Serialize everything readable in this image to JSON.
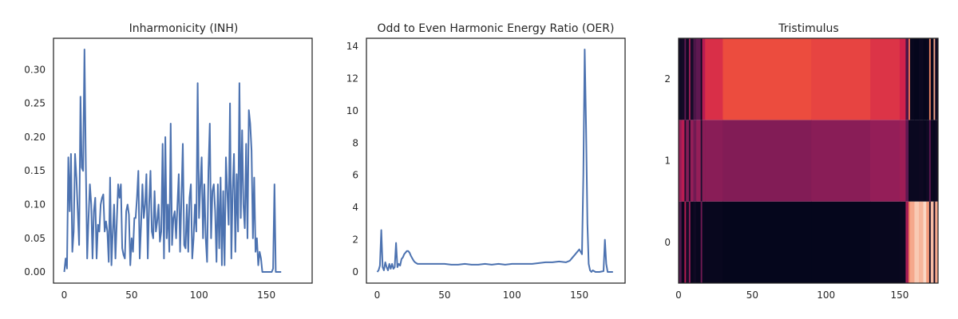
{
  "chart_data": [
    {
      "type": "line",
      "title": "Inharmonicity (INH)",
      "xlabel": "",
      "ylabel": "",
      "xlim": [
        -8,
        184
      ],
      "ylim": [
        -0.0165,
        0.3465
      ],
      "xticks": [
        0,
        50,
        100,
        150
      ],
      "yticks": [
        0.0,
        0.05,
        0.1,
        0.15,
        0.2,
        0.25,
        0.3
      ],
      "ytick_labels": [
        "0.00",
        "0.05",
        "0.10",
        "0.15",
        "0.20",
        "0.25",
        "0.30"
      ],
      "grid": false,
      "color": "#4c72b0",
      "points": [
        [
          0,
          0.0
        ],
        [
          1,
          0.02
        ],
        [
          2,
          0.005
        ],
        [
          3,
          0.17
        ],
        [
          4,
          0.09
        ],
        [
          5,
          0.175
        ],
        [
          6,
          0.03
        ],
        [
          7,
          0.06
        ],
        [
          8,
          0.175
        ],
        [
          9,
          0.14
        ],
        [
          10,
          0.09
        ],
        [
          11,
          0.04
        ],
        [
          12,
          0.26
        ],
        [
          13,
          0.155
        ],
        [
          14,
          0.15
        ],
        [
          15,
          0.33
        ],
        [
          16,
          0.16
        ],
        [
          17,
          0.02
        ],
        [
          18,
          0.08
        ],
        [
          19,
          0.13
        ],
        [
          20,
          0.1
        ],
        [
          21,
          0.02
        ],
        [
          22,
          0.09
        ],
        [
          23,
          0.11
        ],
        [
          24,
          0.02
        ],
        [
          25,
          0.07
        ],
        [
          26,
          0.06
        ],
        [
          27,
          0.1
        ],
        [
          28,
          0.11
        ],
        [
          29,
          0.115
        ],
        [
          30,
          0.06
        ],
        [
          31,
          0.075
        ],
        [
          32,
          0.06
        ],
        [
          33,
          0.015
        ],
        [
          34,
          0.14
        ],
        [
          35,
          0.01
        ],
        [
          36,
          0.06
        ],
        [
          37,
          0.1
        ],
        [
          38,
          0.02
        ],
        [
          39,
          0.075
        ],
        [
          40,
          0.13
        ],
        [
          41,
          0.11
        ],
        [
          42,
          0.13
        ],
        [
          43,
          0.035
        ],
        [
          44,
          0.025
        ],
        [
          45,
          0.02
        ],
        [
          46,
          0.09
        ],
        [
          47,
          0.1
        ],
        [
          48,
          0.085
        ],
        [
          49,
          0.01
        ],
        [
          50,
          0.05
        ],
        [
          51,
          0.03
        ],
        [
          52,
          0.08
        ],
        [
          53,
          0.08
        ],
        [
          54,
          0.11
        ],
        [
          55,
          0.15
        ],
        [
          56,
          0.02
        ],
        [
          57,
          0.07
        ],
        [
          58,
          0.13
        ],
        [
          59,
          0.08
        ],
        [
          60,
          0.1
        ],
        [
          61,
          0.145
        ],
        [
          62,
          0.02
        ],
        [
          63,
          0.1
        ],
        [
          64,
          0.15
        ],
        [
          65,
          0.06
        ],
        [
          66,
          0.05
        ],
        [
          67,
          0.12
        ],
        [
          68,
          0.06
        ],
        [
          69,
          0.075
        ],
        [
          70,
          0.1
        ],
        [
          71,
          0.045
        ],
        [
          72,
          0.06
        ],
        [
          73,
          0.19
        ],
        [
          74,
          0.02
        ],
        [
          75,
          0.2
        ],
        [
          76,
          0.05
        ],
        [
          77,
          0.1
        ],
        [
          78,
          0.03
        ],
        [
          79,
          0.22
        ],
        [
          80,
          0.04
        ],
        [
          81,
          0.08
        ],
        [
          82,
          0.09
        ],
        [
          83,
          0.05
        ],
        [
          84,
          0.1
        ],
        [
          85,
          0.145
        ],
        [
          86,
          0.03
        ],
        [
          87,
          0.11
        ],
        [
          88,
          0.19
        ],
        [
          89,
          0.04
        ],
        [
          90,
          0.035
        ],
        [
          91,
          0.1
        ],
        [
          92,
          0.03
        ],
        [
          93,
          0.11
        ],
        [
          94,
          0.13
        ],
        [
          95,
          0.02
        ],
        [
          96,
          0.05
        ],
        [
          97,
          0.1
        ],
        [
          98,
          0.06
        ],
        [
          99,
          0.28
        ],
        [
          100,
          0.08
        ],
        [
          101,
          0.125
        ],
        [
          102,
          0.17
        ],
        [
          103,
          0.05
        ],
        [
          104,
          0.13
        ],
        [
          105,
          0.05
        ],
        [
          106,
          0.015
        ],
        [
          107,
          0.15
        ],
        [
          108,
          0.22
        ],
        [
          109,
          0.05
        ],
        [
          110,
          0.12
        ],
        [
          111,
          0.13
        ],
        [
          112,
          0.09
        ],
        [
          113,
          0.015
        ],
        [
          114,
          0.13
        ],
        [
          115,
          0.035
        ],
        [
          116,
          0.14
        ],
        [
          117,
          0.01
        ],
        [
          118,
          0.12
        ],
        [
          119,
          0.01
        ],
        [
          120,
          0.17
        ],
        [
          121,
          0.12
        ],
        [
          122,
          0.07
        ],
        [
          123,
          0.25
        ],
        [
          124,
          0.02
        ],
        [
          125,
          0.12
        ],
        [
          126,
          0.175
        ],
        [
          127,
          0.03
        ],
        [
          128,
          0.145
        ],
        [
          129,
          0.06
        ],
        [
          130,
          0.28
        ],
        [
          131,
          0.08
        ],
        [
          132,
          0.21
        ],
        [
          133,
          0.1
        ],
        [
          134,
          0.065
        ],
        [
          135,
          0.19
        ],
        [
          136,
          0.05
        ],
        [
          137,
          0.24
        ],
        [
          138,
          0.22
        ],
        [
          139,
          0.18
        ],
        [
          140,
          0.05
        ],
        [
          141,
          0.14
        ],
        [
          142,
          0.03
        ],
        [
          143,
          0.05
        ],
        [
          144,
          0.01
        ],
        [
          145,
          0.03
        ],
        [
          146,
          0.02
        ],
        [
          147,
          0.0
        ],
        [
          148,
          0.0
        ],
        [
          149,
          0.0
        ],
        [
          150,
          0.0
        ],
        [
          151,
          0.0
        ],
        [
          152,
          0.0
        ],
        [
          153,
          0.0
        ],
        [
          154,
          0.0
        ],
        [
          155,
          0.005
        ],
        [
          156,
          0.13
        ],
        [
          157,
          0.0
        ],
        [
          158,
          0.0
        ],
        [
          159,
          0.0
        ],
        [
          160,
          0.0
        ],
        [
          161,
          0.0
        ]
      ]
    },
    {
      "type": "line",
      "title": "Odd to Even Harmonic Energy Ratio (OER)",
      "xlabel": "",
      "ylabel": "",
      "xlim": [
        -8,
        184
      ],
      "ylim": [
        -0.69,
        14.49
      ],
      "xticks": [
        0,
        50,
        100,
        150
      ],
      "yticks": [
        0,
        2,
        4,
        6,
        8,
        10,
        12,
        14
      ],
      "ytick_labels": [
        "0",
        "2",
        "4",
        "6",
        "8",
        "10",
        "12",
        "14"
      ],
      "grid": false,
      "color": "#4c72b0",
      "points": [
        [
          0,
          0.0
        ],
        [
          1,
          0.1
        ],
        [
          2,
          0.4
        ],
        [
          3,
          2.6
        ],
        [
          4,
          0.3
        ],
        [
          5,
          0.1
        ],
        [
          6,
          0.6
        ],
        [
          7,
          0.3
        ],
        [
          8,
          0.1
        ],
        [
          9,
          0.5
        ],
        [
          10,
          0.2
        ],
        [
          11,
          0.5
        ],
        [
          12,
          0.2
        ],
        [
          13,
          0.3
        ],
        [
          14,
          1.8
        ],
        [
          15,
          0.3
        ],
        [
          16,
          0.5
        ],
        [
          17,
          0.4
        ],
        [
          18,
          0.8
        ],
        [
          19,
          0.9
        ],
        [
          20,
          1.1
        ],
        [
          21,
          1.2
        ],
        [
          22,
          1.3
        ],
        [
          23,
          1.3
        ],
        [
          24,
          1.2
        ],
        [
          25,
          1.0
        ],
        [
          26,
          0.85
        ],
        [
          27,
          0.7
        ],
        [
          28,
          0.6
        ],
        [
          29,
          0.55
        ],
        [
          30,
          0.5
        ],
        [
          35,
          0.5
        ],
        [
          40,
          0.5
        ],
        [
          45,
          0.5
        ],
        [
          50,
          0.5
        ],
        [
          55,
          0.45
        ],
        [
          60,
          0.45
        ],
        [
          65,
          0.5
        ],
        [
          70,
          0.45
        ],
        [
          75,
          0.45
        ],
        [
          80,
          0.5
        ],
        [
          85,
          0.45
        ],
        [
          90,
          0.5
        ],
        [
          95,
          0.45
        ],
        [
          100,
          0.5
        ],
        [
          105,
          0.5
        ],
        [
          110,
          0.5
        ],
        [
          115,
          0.5
        ],
        [
          120,
          0.55
        ],
        [
          125,
          0.6
        ],
        [
          130,
          0.6
        ],
        [
          135,
          0.65
        ],
        [
          140,
          0.6
        ],
        [
          143,
          0.7
        ],
        [
          145,
          0.9
        ],
        [
          147,
          1.1
        ],
        [
          150,
          1.4
        ],
        [
          152,
          1.1
        ],
        [
          153,
          6.0
        ],
        [
          154,
          13.8
        ],
        [
          155,
          9.0
        ],
        [
          156,
          3.0
        ],
        [
          157,
          0.5
        ],
        [
          158,
          0.1
        ],
        [
          159,
          0.0
        ],
        [
          160,
          0.1
        ],
        [
          161,
          0.05
        ],
        [
          162,
          0.0
        ],
        [
          165,
          0.0
        ],
        [
          168,
          0.05
        ],
        [
          169,
          2.0
        ],
        [
          170,
          0.5
        ],
        [
          171,
          0.0
        ],
        [
          175,
          0.0
        ]
      ]
    },
    {
      "type": "heatmap",
      "title": "Tristimulus",
      "xlabel": "",
      "ylabel": "",
      "xlim": [
        0,
        176
      ],
      "ylim": [
        -0.5,
        2.5
      ],
      "xticks": [
        0,
        50,
        100,
        150
      ],
      "yticks": [
        0,
        1,
        2
      ],
      "ytick_labels": [
        "0",
        "1",
        "2"
      ],
      "colormap": "rocket",
      "rows": [
        "0",
        "1",
        "2"
      ],
      "value_scale": [
        0,
        1
      ],
      "segments": [
        {
          "x0": 0,
          "x1": 2,
          "values": [
            0.25,
            0.45,
            0.05
          ]
        },
        {
          "x0": 2,
          "x1": 4,
          "values": [
            0.02,
            0.55,
            0.06
          ]
        },
        {
          "x0": 4,
          "x1": 5,
          "values": [
            0.55,
            0.1,
            0.3
          ]
        },
        {
          "x0": 5,
          "x1": 7,
          "values": [
            0.08,
            0.4,
            0.05
          ]
        },
        {
          "x0": 7,
          "x1": 8,
          "values": [
            0.45,
            0.1,
            0.5
          ]
        },
        {
          "x0": 8,
          "x1": 10,
          "values": [
            0.02,
            0.45,
            0.08
          ]
        },
        {
          "x0": 10,
          "x1": 12,
          "values": [
            0.05,
            0.35,
            0.25
          ]
        },
        {
          "x0": 12,
          "x1": 15,
          "values": [
            0.02,
            0.45,
            0.3
          ]
        },
        {
          "x0": 15,
          "x1": 16,
          "values": [
            0.35,
            0.1,
            0.05
          ]
        },
        {
          "x0": 16,
          "x1": 18,
          "values": [
            0.02,
            0.42,
            0.55
          ]
        },
        {
          "x0": 18,
          "x1": 30,
          "values": [
            0.02,
            0.42,
            0.65
          ]
        },
        {
          "x0": 30,
          "x1": 90,
          "values": [
            0.01,
            0.4,
            0.72
          ]
        },
        {
          "x0": 90,
          "x1": 130,
          "values": [
            0.01,
            0.42,
            0.7
          ]
        },
        {
          "x0": 130,
          "x1": 150,
          "values": [
            0.02,
            0.45,
            0.66
          ]
        },
        {
          "x0": 150,
          "x1": 154,
          "values": [
            0.03,
            0.48,
            0.62
          ]
        },
        {
          "x0": 154,
          "x1": 156,
          "values": [
            0.5,
            0.3,
            0.25
          ]
        },
        {
          "x0": 156,
          "x1": 157,
          "values": [
            0.85,
            0.02,
            0.8
          ]
        },
        {
          "x0": 157,
          "x1": 160,
          "values": [
            0.9,
            0.03,
            0.02
          ]
        },
        {
          "x0": 160,
          "x1": 163,
          "values": [
            0.95,
            0.03,
            0.01
          ]
        },
        {
          "x0": 163,
          "x1": 166,
          "values": [
            0.92,
            0.04,
            0.03
          ]
        },
        {
          "x0": 166,
          "x1": 168,
          "values": [
            0.97,
            0.02,
            0.01
          ]
        },
        {
          "x0": 168,
          "x1": 170,
          "values": [
            0.88,
            0.05,
            0.02
          ]
        },
        {
          "x0": 170,
          "x1": 171,
          "values": [
            0.02,
            0.3,
            0.85
          ]
        },
        {
          "x0": 171,
          "x1": 173,
          "values": [
            0.93,
            0.03,
            0.02
          ]
        },
        {
          "x0": 173,
          "x1": 174,
          "values": [
            0.05,
            0.02,
            0.9
          ]
        },
        {
          "x0": 174,
          "x1": 176,
          "values": [
            0.9,
            0.05,
            0.05
          ]
        }
      ]
    }
  ]
}
